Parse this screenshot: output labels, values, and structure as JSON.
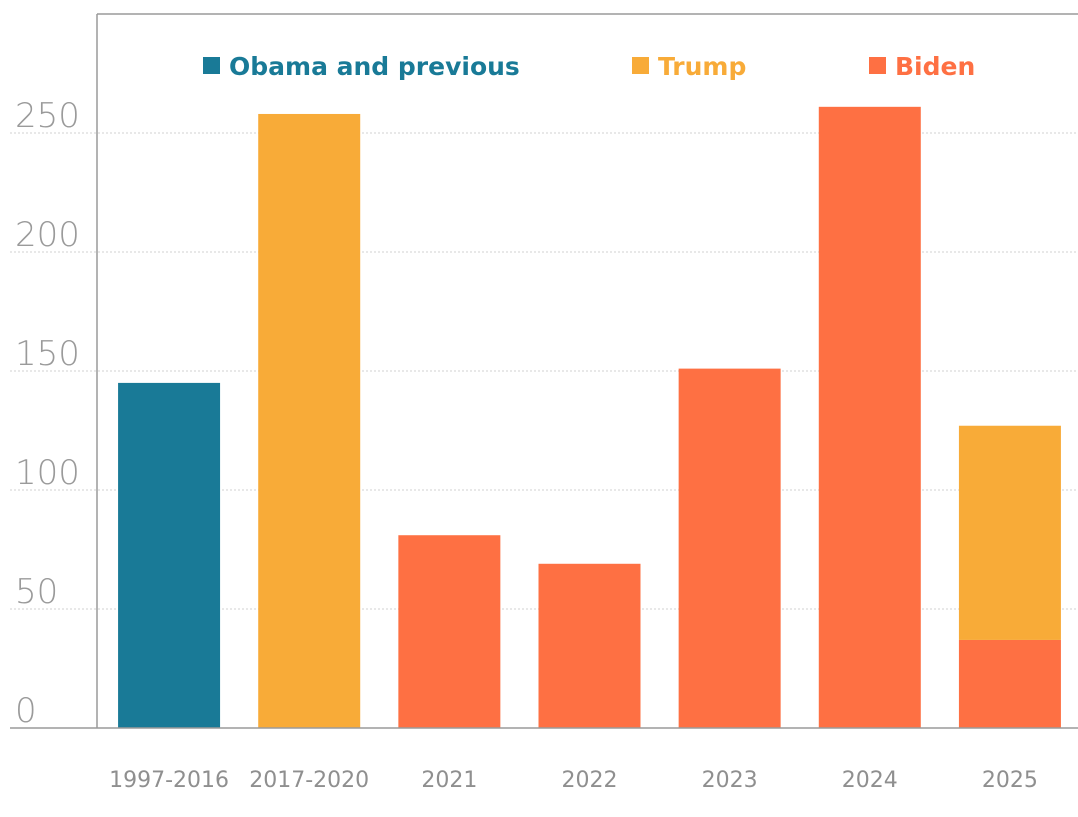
{
  "chart_data": {
    "type": "bar",
    "stacked": true,
    "categories": [
      "1997-2016",
      "2017-2020",
      "2021",
      "2022",
      "2023",
      "2024",
      "2025"
    ],
    "series": [
      {
        "name": "Obama and previous",
        "color": "#197a97",
        "values": [
          145,
          0,
          0,
          0,
          0,
          0,
          0
        ]
      },
      {
        "name": "Biden",
        "color": "#fe7043",
        "values": [
          0,
          0,
          81,
          69,
          151,
          261,
          37
        ]
      },
      {
        "name": "Trump",
        "color": "#f8ab38",
        "values": [
          0,
          258,
          0,
          0,
          0,
          0,
          90
        ]
      }
    ],
    "legend_order": [
      "Obama and previous",
      "Trump",
      "Biden"
    ],
    "y_ticks": [
      "0",
      "50",
      "100",
      "150",
      "200",
      "250"
    ],
    "ylim": [
      0,
      300
    ],
    "grid": true,
    "legend_position": "top",
    "title": "",
    "xlabel": "",
    "ylabel": ""
  }
}
